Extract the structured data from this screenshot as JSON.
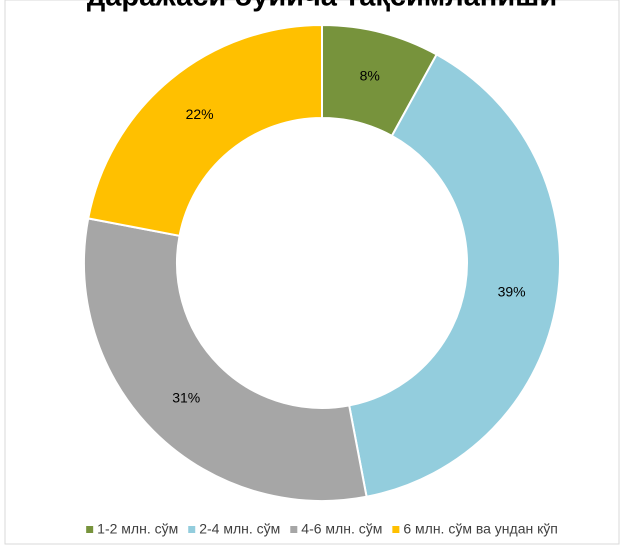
{
  "chart_data": {
    "type": "donut",
    "title": "даражаси бўйича тақсимланиши",
    "categories": [
      "1-2 млн. сўм",
      "2-4 млн. сўм",
      "4-6 млн. сўм",
      "6 млн. сўм ва ундан кўп"
    ],
    "values": [
      8,
      39,
      31,
      22
    ],
    "value_labels": [
      "8%",
      "39%",
      "31%",
      "22%"
    ],
    "colors": [
      "#77933c",
      "#93cddd",
      "#a6a6a6",
      "#ffc000"
    ],
    "legend": "bottom"
  }
}
